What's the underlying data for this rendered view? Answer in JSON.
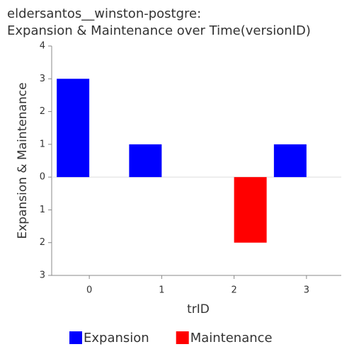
{
  "chart_data": {
    "type": "bar",
    "title": [
      "eldersantos__winston-postgre:",
      "Expansion & Maintenance over Time(versionID)"
    ],
    "x_label": "trID",
    "y_label": "Expansion & Maintenance",
    "categories": [
      "0",
      "1",
      "2",
      "3"
    ],
    "series": [
      {
        "name": "Expansion",
        "color": "#0000ff",
        "values": [
          3,
          1,
          0,
          1
        ]
      },
      {
        "name": "Maintenance",
        "color": "#ff0000",
        "values": [
          0,
          0,
          -2,
          0
        ]
      }
    ],
    "ylim": [
      -3,
      4
    ],
    "yticks": [
      {
        "value": -3,
        "label": "3"
      },
      {
        "value": -2,
        "label": "2"
      },
      {
        "value": -1,
        "label": "1"
      },
      0,
      1,
      2,
      3,
      4
    ],
    "legend": "bottom"
  }
}
